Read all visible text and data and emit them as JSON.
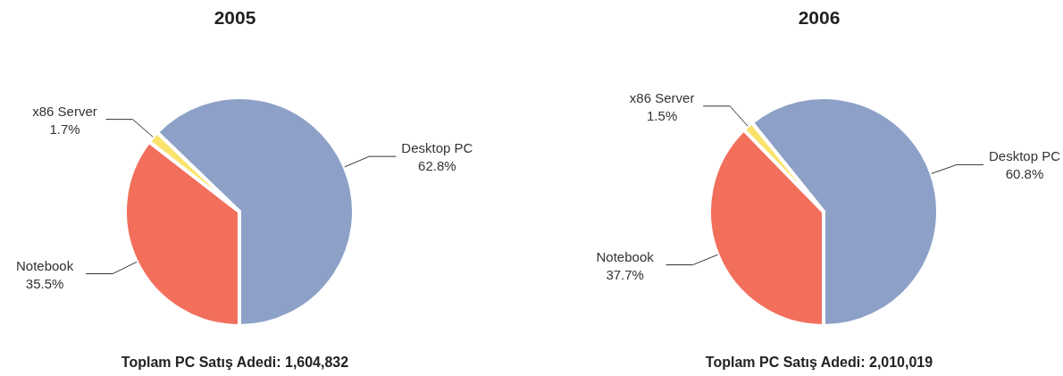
{
  "chart_data": [
    {
      "type": "pie",
      "title": "2005",
      "categories": [
        "Desktop PC",
        "Notebook",
        "x86 Server"
      ],
      "values": [
        62.8,
        35.5,
        1.7
      ],
      "value_labels": [
        "62.8%",
        "35.5%",
        "1.7%"
      ],
      "colors": [
        "#8da1c8",
        "#f26f5c",
        "#fbe26a"
      ],
      "annotations": [
        "Toplam PC Satış Adedi: 1,604,832"
      ]
    },
    {
      "type": "pie",
      "title": "2006",
      "categories": [
        "Desktop PC",
        "Notebook",
        "x86 Server"
      ],
      "values": [
        60.8,
        37.7,
        1.5
      ],
      "value_labels": [
        "60.8%",
        "37.7%",
        "1.5%"
      ],
      "colors": [
        "#8da1c8",
        "#f26f5c",
        "#fbe26a"
      ],
      "annotations": [
        "Toplam PC Satış Adedi: 2,010,019"
      ]
    }
  ]
}
